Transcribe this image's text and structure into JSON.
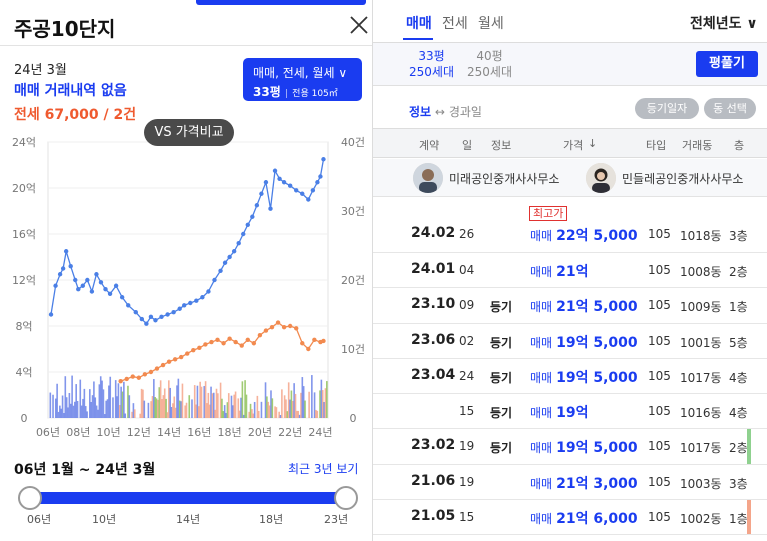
{
  "left": {
    "title": "주공10단지",
    "period": "24년 3월",
    "sale_status": "매매 거래내역 없음",
    "jeonse_summary": "전세 67,000 / 2건",
    "filter": {
      "line1": "매매, 전세, 월세 ∨",
      "size": "33평",
      "sep": "|",
      "net": "전용 105㎡"
    },
    "vs_button": "VS 가격비교",
    "range_text": "06년 1월 ~ 24년 3월",
    "recent_link": "최근 3년 보기",
    "slider_labels": [
      "06년",
      "10년",
      "14년",
      "18년",
      "23년"
    ]
  },
  "chart_data": {
    "type": "line",
    "x_tick_labels": [
      "06년",
      "08년",
      "10년",
      "12년",
      "14년",
      "16년",
      "18년",
      "20년",
      "22년",
      "24년"
    ],
    "y_left_ticks": [
      "0",
      "4억",
      "8억",
      "12억",
      "16억",
      "20억",
      "24억"
    ],
    "y_right_ticks": [
      "0",
      "10건",
      "20건",
      "30건",
      "40건"
    ],
    "ylim_left": [
      0,
      24
    ],
    "ylim_right": [
      0,
      40
    ],
    "xlim": [
      2006.0,
      2024.5
    ],
    "colors": {
      "sale": "#4a7fe6",
      "jeonse": "#f28a4f",
      "sale_vol": "#6b82e8",
      "jeonse_vol": "#f4a58a",
      "other_vol": "#8fc25a"
    },
    "series": [
      {
        "name": "매매",
        "unit": "억",
        "x": [
          2006.2,
          2006.5,
          2006.8,
          2007.0,
          2007.2,
          2007.5,
          2007.8,
          2008.0,
          2008.3,
          2008.6,
          2008.9,
          2009.2,
          2009.5,
          2009.8,
          2010.1,
          2010.5,
          2010.9,
          2011.3,
          2011.8,
          2012.2,
          2012.5,
          2012.8,
          2013.1,
          2013.5,
          2013.9,
          2014.3,
          2014.7,
          2015.0,
          2015.4,
          2015.8,
          2016.2,
          2016.6,
          2017.0,
          2017.4,
          2017.7,
          2018.0,
          2018.3,
          2018.6,
          2018.9,
          2019.2,
          2019.5,
          2019.8,
          2020.1,
          2020.4,
          2020.7,
          2021.0,
          2021.3,
          2021.6,
          2022.0,
          2022.4,
          2022.8,
          2023.2,
          2023.5,
          2023.8,
          2024.0,
          2024.2
        ],
        "values": [
          9.0,
          11.5,
          12.5,
          13.0,
          14.5,
          13.2,
          12.0,
          11.2,
          11.5,
          12.0,
          11.0,
          12.5,
          11.8,
          11.2,
          10.8,
          11.5,
          10.5,
          9.8,
          9.2,
          8.6,
          8.2,
          8.8,
          8.5,
          8.8,
          9.0,
          9.2,
          9.5,
          9.8,
          10.0,
          10.2,
          10.5,
          11.0,
          12.0,
          12.8,
          13.5,
          14.0,
          14.5,
          15.2,
          16.0,
          16.8,
          17.5,
          18.5,
          19.5,
          20.5,
          18.2,
          21.5,
          20.8,
          20.5,
          20.2,
          19.8,
          19.5,
          19.0,
          19.8,
          20.5,
          21.0,
          22.5
        ]
      },
      {
        "name": "전세",
        "unit": "억",
        "x": [
          2010.8,
          2011.2,
          2011.6,
          2012.0,
          2012.4,
          2012.8,
          2013.2,
          2013.6,
          2014.0,
          2014.4,
          2014.8,
          2015.2,
          2015.6,
          2016.0,
          2016.4,
          2016.8,
          2017.2,
          2017.6,
          2018.0,
          2018.4,
          2018.8,
          2019.2,
          2019.6,
          2020.0,
          2020.4,
          2020.8,
          2021.2,
          2021.6,
          2022.0,
          2022.4,
          2022.8,
          2023.2,
          2023.6,
          2024.0,
          2024.2
        ],
        "values": [
          3.2,
          3.4,
          3.6,
          3.5,
          3.8,
          4.0,
          4.3,
          4.6,
          4.9,
          5.1,
          5.3,
          5.6,
          5.9,
          6.1,
          6.4,
          6.6,
          6.8,
          6.5,
          6.9,
          6.6,
          6.3,
          6.8,
          6.5,
          7.2,
          7.6,
          7.9,
          8.3,
          7.9,
          8.0,
          7.8,
          6.5,
          6.0,
          6.8,
          6.6,
          6.7
        ]
      }
    ]
  },
  "right": {
    "tabs": [
      "매매",
      "전세",
      "월세"
    ],
    "year_select": "전체년도 ∨",
    "areas": [
      {
        "size": "33평",
        "units": "250세대"
      },
      {
        "size": "40평",
        "units": "250세대"
      }
    ],
    "expand_button": "평풀기",
    "info_label": "정보",
    "info_arrow": "↔",
    "info_alt": "경과일",
    "chip_registered": "등기일자",
    "chip_dong": "동 선택",
    "headers": [
      "계약",
      "일",
      "정보",
      "가격",
      "↓",
      "타입",
      "거래동",
      "층"
    ],
    "agents": [
      "미래공인중개사사무소",
      "민들레공인중개사사무소"
    ],
    "record_badge": "최고가",
    "rows": [
      {
        "date": "24.02",
        "day": "26",
        "reg": "",
        "kind": "매매",
        "price": "22억 5,000",
        "type": "105",
        "dong": "1018동",
        "floor": "3층",
        "badge": true,
        "bar": ""
      },
      {
        "date": "24.01",
        "day": "04",
        "reg": "",
        "kind": "매매",
        "price": "21억",
        "type": "105",
        "dong": "1008동",
        "floor": "2층",
        "badge": false,
        "bar": ""
      },
      {
        "date": "23.10",
        "day": "09",
        "reg": "등기",
        "kind": "매매",
        "price": "21억 5,000",
        "type": "105",
        "dong": "1009동",
        "floor": "1층",
        "badge": false,
        "bar": ""
      },
      {
        "date": "23.06",
        "day": "02",
        "reg": "등기",
        "kind": "매매",
        "price": "19억 5,000",
        "type": "105",
        "dong": "1001동",
        "floor": "5층",
        "badge": false,
        "bar": ""
      },
      {
        "date": "23.04",
        "day": "24",
        "reg": "등기",
        "kind": "매매",
        "price": "19억 5,000",
        "type": "105",
        "dong": "1017동",
        "floor": "4층",
        "badge": false,
        "bar": ""
      },
      {
        "date": "",
        "day": "15",
        "reg": "등기",
        "kind": "매매",
        "price": "19억",
        "type": "105",
        "dong": "1016동",
        "floor": "4층",
        "badge": false,
        "bar": ""
      },
      {
        "date": "23.02",
        "day": "19",
        "reg": "등기",
        "kind": "매매",
        "price": "19억 5,000",
        "type": "105",
        "dong": "1017동",
        "floor": "2층",
        "badge": false,
        "bar": "#8fd18f"
      },
      {
        "date": "21.06",
        "day": "19",
        "reg": "",
        "kind": "매매",
        "price": "21억 3,000",
        "type": "105",
        "dong": "1003동",
        "floor": "3층",
        "badge": false,
        "bar": ""
      },
      {
        "date": "21.05",
        "day": "15",
        "reg": "",
        "kind": "매매",
        "price": "21억 6,000",
        "type": "105",
        "dong": "1002동",
        "floor": "1층",
        "badge": false,
        "bar": "#f4a58a"
      }
    ]
  }
}
